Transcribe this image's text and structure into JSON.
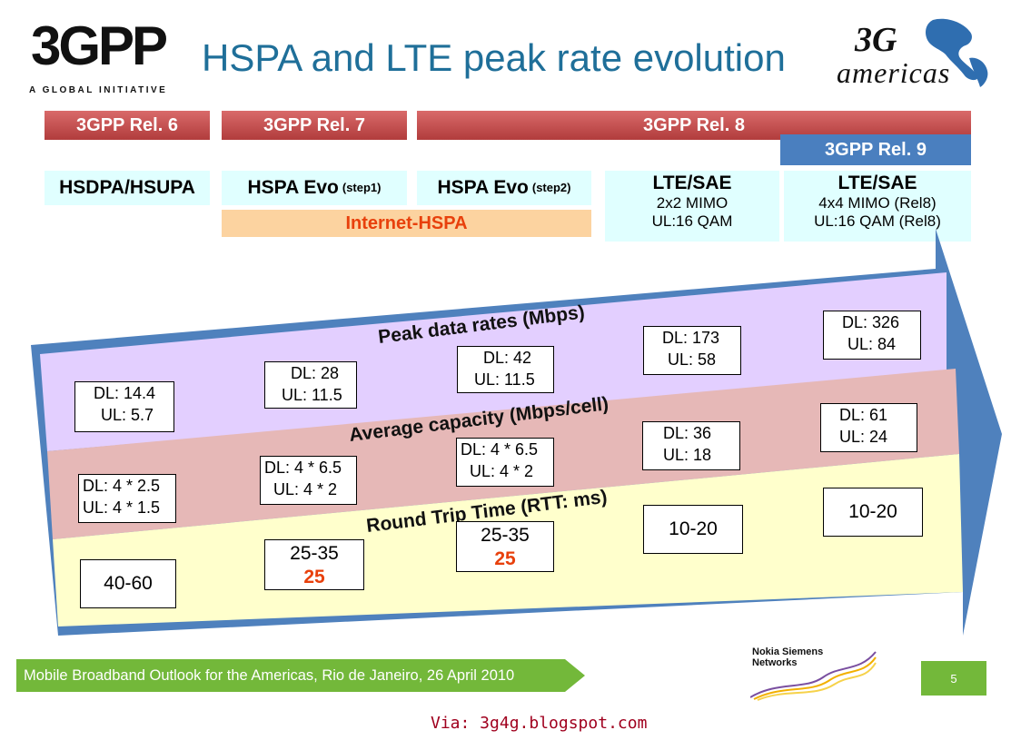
{
  "title": "HSPA and LTE peak rate evolution",
  "logo_3gpp": {
    "text": "3GPP",
    "tagline": "A GLOBAL INITIATIVE"
  },
  "logo_3gamericas": {
    "top": "3G",
    "word": "americas"
  },
  "releases": {
    "rel6": "3GPP Rel. 6",
    "rel7": "3GPP Rel. 7",
    "rel8": "3GPP Rel. 8",
    "rel9": "3GPP Rel. 9"
  },
  "technologies": {
    "t1": "HSDPA/HSUPA",
    "t2": "HSPA Evo",
    "t2_step": "(step1)",
    "t3": "HSPA Evo",
    "t3_step": "(step2)",
    "t4_title": "LTE/SAE",
    "t4_line1": "2x2 MIMO",
    "t4_line2": "UL:16 QAM",
    "t5_title": "LTE/SAE",
    "t5_line1": "4x4 MIMO (Rel8)",
    "t5_line2": "UL:16 QAM (Rel8)",
    "internet_hspa": "Internet-HSPA"
  },
  "bands": {
    "peak": "Peak data rates (Mbps)",
    "capacity": "Average capacity (Mbps/cell)",
    "rtt": "Round Trip Time (RTT: ms)"
  },
  "peak_rates": [
    {
      "dl": "DL: 14.4",
      "ul": "UL: 5.7"
    },
    {
      "dl": "DL: 28",
      "ul": "UL: 11.5"
    },
    {
      "dl": "DL: 42",
      "ul": "UL: 11.5"
    },
    {
      "dl": "DL: 173",
      "ul": "UL: 58"
    },
    {
      "dl": "DL: 326",
      "ul": "UL: 84"
    }
  ],
  "capacity": [
    {
      "dl": "DL: 4 * 2.5",
      "ul": "UL: 4 * 1.5"
    },
    {
      "dl": "DL: 4 * 6.5",
      "ul": "UL: 4 * 2"
    },
    {
      "dl": "DL: 4 * 6.5",
      "ul": "UL: 4 * 2"
    },
    {
      "dl": "DL: 36",
      "ul": "UL: 18"
    },
    {
      "dl": "DL: 61",
      "ul": "UL: 24"
    }
  ],
  "rtt": [
    {
      "range": "40-60",
      "highlight": ""
    },
    {
      "range": "25-35",
      "highlight": "25"
    },
    {
      "range": "25-35",
      "highlight": "25"
    },
    {
      "range": "10-20",
      "highlight": ""
    },
    {
      "range": "10-20",
      "highlight": ""
    }
  ],
  "footer": {
    "text": "Mobile Broadband Outlook for the Americas, Rio de Janeiro, 26 April 2010",
    "page": "5"
  },
  "nsn_logo": {
    "line1": "Nokia Siemens",
    "line2": "Networks"
  },
  "via": "Via: 3g4g.blogspot.com",
  "colors": {
    "title": "#1f6f99",
    "release_bar": "#c0504d",
    "release9": "#4a7fbf",
    "tech_bg": "#e0ffff",
    "internet_hspa_bg": "#fcd3a0",
    "internet_hspa_text": "#e8400c",
    "band_peak": "#e3cfff",
    "band_capacity": "#e6b8b7",
    "band_rtt": "#ffffcc",
    "arrow": "#4f81bd",
    "footer_green": "#73b83a",
    "via": "#a0001e"
  }
}
